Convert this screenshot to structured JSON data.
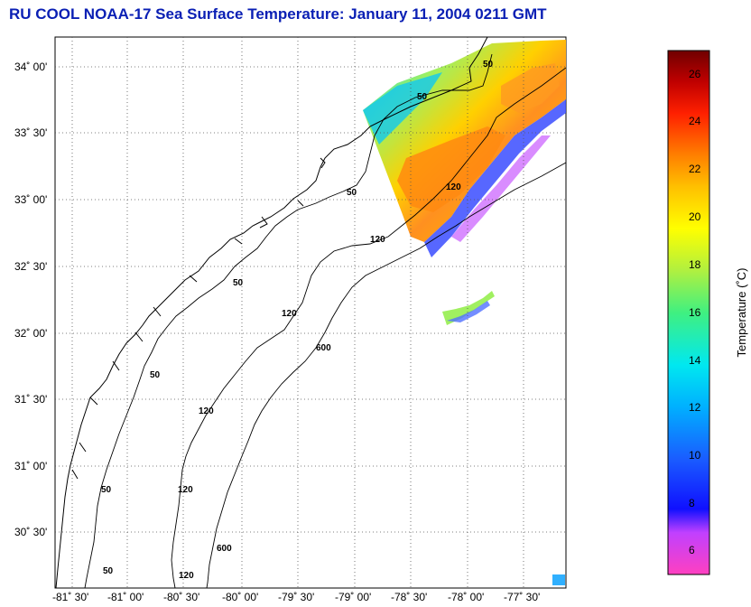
{
  "title": "RU COOL  NOAA-17  Sea Surface Temperature:  January 11, 2004 0211 GMT",
  "lat_ticks": [
    "34˚ 00'",
    "33˚ 30'",
    "33˚ 00'",
    "32˚ 30'",
    "32˚ 00'",
    "31˚ 30'",
    "31˚ 00'",
    "30˚ 30'"
  ],
  "lon_ticks": [
    "-81˚ 30'",
    "-81˚ 00'",
    "-80˚ 30'",
    "-80˚ 00'",
    "-79˚ 30'",
    "-79˚ 00'",
    "-78˚ 30'",
    "-78˚ 00'",
    "-77˚ 30'"
  ],
  "contour_labels": [
    "50",
    "50",
    "50",
    "120",
    "120",
    "120",
    "120",
    "600",
    "600",
    "50",
    "50",
    "120",
    "50",
    "120",
    "50"
  ],
  "colorbar": {
    "label": "Temperature (˚C)",
    "ticks": [
      "26",
      "24",
      "22",
      "20",
      "18",
      "16",
      "14",
      "12",
      "10",
      "8",
      "6"
    ],
    "range": [
      5,
      27
    ]
  },
  "colors": {
    "title": "#0a1fb4"
  }
}
